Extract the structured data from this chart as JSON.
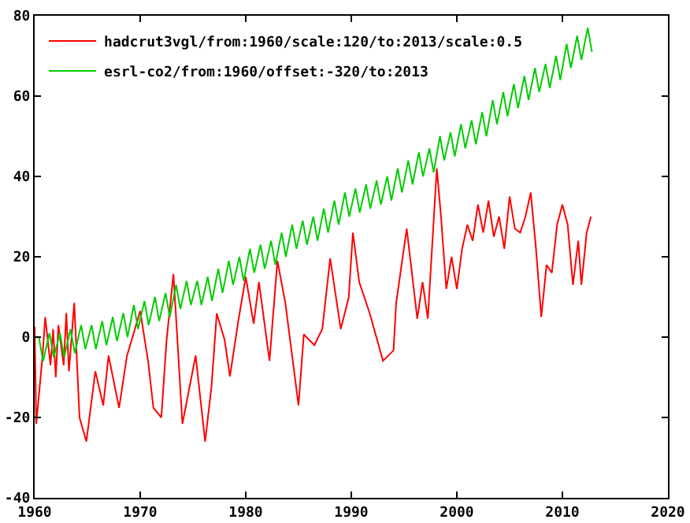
{
  "chart_data": {
    "type": "line",
    "legend": "top left",
    "grid": false,
    "xlim": [
      1960,
      2020
    ],
    "xticks": [
      1960,
      1970,
      1980,
      1990,
      2000,
      2010,
      2020
    ],
    "ylim": [
      -40,
      80
    ],
    "yticks": [
      -40,
      -20,
      0,
      20,
      40,
      60,
      80
    ],
    "series": [
      {
        "name": "hadcrut3vgl/from:1960/scale:120/to:2013/scale:0.5",
        "color": "#ff0000",
        "x": [
          1960.0,
          1960.15,
          1960.75,
          1961.0,
          1961.5,
          1961.75,
          1962.0,
          1962.25,
          1962.75,
          1963.0,
          1963.25,
          1963.75,
          1964.25,
          1964.9,
          1965.75,
          1966.5,
          1967.0,
          1968.0,
          1968.75,
          1969.5,
          1970.0,
          1970.75,
          1971.25,
          1972.0,
          1972.5,
          1973.15,
          1974.0,
          1975.25,
          1976.15,
          1976.75,
          1977.25,
          1978.0,
          1978.5,
          1979.25,
          1980.0,
          1980.75,
          1981.25,
          1982.25,
          1983.0,
          1983.75,
          1985.0,
          1985.5,
          1986.5,
          1987.25,
          1988.0,
          1989.0,
          1989.75,
          1990.15,
          1990.75,
          1991.75,
          1993.0,
          1994.0,
          1994.25,
          1995.25,
          1996.25,
          1996.75,
          1997.25,
          1998.1,
          1998.5,
          1999.0,
          1999.5,
          2000.0,
          2000.5,
          2001.0,
          2001.5,
          2002.0,
          2002.5,
          2003.0,
          2003.5,
          2004.0,
          2004.5,
          2005.0,
          2005.5,
          2006.0,
          2006.5,
          2007.0,
          2007.5,
          2008.0,
          2008.5,
          2009.0,
          2009.5,
          2010.0,
          2010.5,
          2011.0,
          2011.5,
          2011.8,
          2012.3,
          2012.7
        ],
        "values": [
          2.6,
          -21.6,
          -4.6,
          5,
          -7,
          2,
          -10,
          3,
          -7,
          6,
          -8.5,
          8.5,
          -20,
          -26,
          -8.5,
          -17,
          -4.6,
          -17.6,
          -4.6,
          2,
          6.5,
          -6,
          -17.6,
          -20,
          -0.7,
          15.7,
          -21.6,
          -4.6,
          -26,
          -12.4,
          5.9,
          -0.7,
          -9.8,
          3.3,
          15,
          3.3,
          13.7,
          -5.9,
          19,
          8.5,
          -17,
          0.7,
          -2,
          2,
          19.6,
          2,
          9.8,
          26,
          13.7,
          5.9,
          -5.9,
          -3.3,
          8.5,
          27,
          4.6,
          13.7,
          4.6,
          42,
          30,
          12,
          20,
          12,
          22,
          28,
          24,
          33,
          26,
          34,
          25,
          30,
          22,
          35,
          27,
          26,
          30,
          36,
          22,
          5,
          18,
          16,
          28,
          33,
          28,
          13,
          24,
          13,
          26,
          30
        ]
      },
      {
        "name": "esrl-co2/from:1960/offset:-320/to:2013",
        "color": "#00cc00",
        "x": [
          1960.4,
          1960.8,
          1961.4,
          1961.8,
          1962.4,
          1962.8,
          1963.4,
          1963.8,
          1964.4,
          1964.8,
          1965.4,
          1965.8,
          1966.4,
          1966.8,
          1967.4,
          1967.8,
          1968.4,
          1968.8,
          1969.4,
          1969.8,
          1970.4,
          1970.8,
          1971.4,
          1971.8,
          1972.4,
          1972.8,
          1973.4,
          1973.8,
          1974.4,
          1974.8,
          1975.4,
          1975.8,
          1976.4,
          1976.8,
          1977.4,
          1977.8,
          1978.4,
          1978.8,
          1979.4,
          1979.8,
          1980.4,
          1980.8,
          1981.4,
          1981.8,
          1982.4,
          1982.8,
          1983.4,
          1983.8,
          1984.4,
          1984.8,
          1985.4,
          1985.8,
          1986.4,
          1986.8,
          1987.4,
          1987.8,
          1988.4,
          1988.8,
          1989.4,
          1989.8,
          1990.4,
          1990.8,
          1991.4,
          1991.8,
          1992.4,
          1992.8,
          1993.4,
          1993.8,
          1994.4,
          1994.8,
          1995.4,
          1995.8,
          1996.4,
          1996.8,
          1997.4,
          1997.8,
          1998.4,
          1998.8,
          1999.4,
          1999.8,
          2000.4,
          2000.8,
          2001.4,
          2001.8,
          2002.4,
          2002.8,
          2003.4,
          2003.8,
          2004.4,
          2004.8,
          2005.4,
          2005.8,
          2006.4,
          2006.8,
          2007.4,
          2007.8,
          2008.4,
          2008.8,
          2009.4,
          2009.8,
          2010.4,
          2010.8,
          2011.4,
          2011.8,
          2012.4,
          2012.8
        ],
        "values": [
          0,
          -6,
          1,
          -5,
          1,
          -5,
          2,
          -4,
          3,
          -3,
          3,
          -3,
          4,
          -2,
          5,
          -1,
          6,
          0,
          8,
          2,
          9,
          3,
          10,
          4,
          11,
          5,
          13,
          7,
          14,
          8,
          14,
          8,
          15,
          9,
          17,
          11,
          19,
          13,
          20,
          14,
          22,
          16,
          23,
          17,
          24,
          18,
          26,
          20,
          28,
          22,
          29,
          23,
          30,
          24,
          32,
          26,
          34,
          28,
          36,
          30,
          37,
          31,
          38,
          32,
          39,
          33,
          40,
          34,
          42,
          36,
          44,
          38,
          46,
          40,
          47,
          41,
          50,
          44,
          51,
          45,
          53,
          47,
          54,
          48,
          56,
          50,
          59,
          53,
          61,
          55,
          63,
          57,
          65,
          59,
          67,
          61,
          68,
          62,
          70,
          64,
          73,
          67,
          75,
          69,
          77,
          71
        ]
      }
    ]
  }
}
